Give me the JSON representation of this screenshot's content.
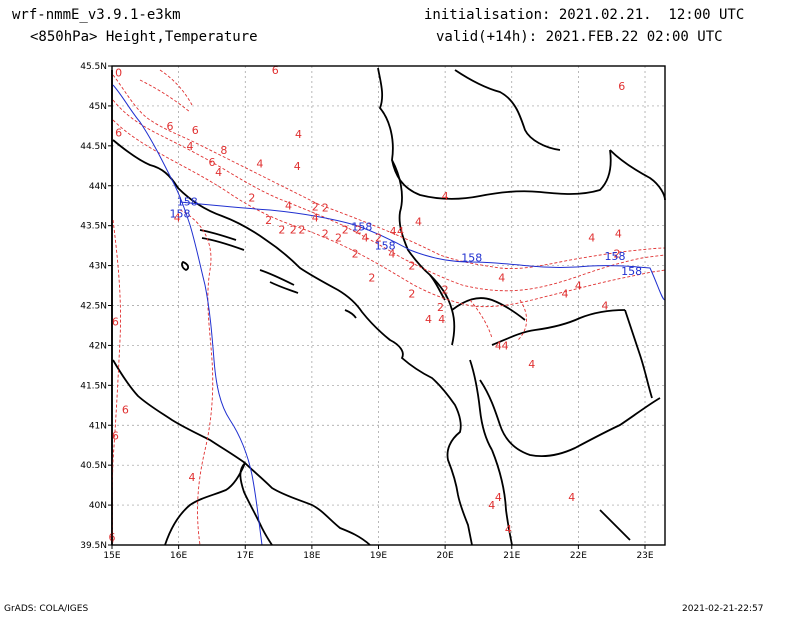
{
  "header": {
    "model": "wrf-nmmE_v3.9.1-e3km",
    "level": "<850hPa> Height,Temperature",
    "init": "initialisation: 2021.02.21.  12:00 UTC",
    "valid": "valid(+14h): 2021.FEB.22 02:00 UTC"
  },
  "footer": {
    "credit": "GrADS: COLA/IGES",
    "timestamp": "2021-02-21-22:57"
  },
  "map": {
    "lon_range": [
      15,
      23.3
    ],
    "lat_range": [
      39.5,
      45.5
    ],
    "lon_ticks": [
      "15E",
      "16E",
      "17E",
      "18E",
      "19E",
      "20E",
      "21E",
      "22E",
      "23E"
    ],
    "lat_ticks": [
      "45.5N",
      "45N",
      "44.5N",
      "44N",
      "43.5N",
      "43N",
      "42.5N",
      "42N",
      "41.5N",
      "41N",
      "40.5N",
      "40N",
      "39.5N"
    ],
    "grid": true,
    "colors": {
      "temperature": "#e03030",
      "height": "#2030d0",
      "coast": "#000000",
      "grid": "#9a9a9a"
    },
    "temperature_labels": [
      {
        "text": "0",
        "lon": 15.1,
        "lat": 45.37
      },
      {
        "text": "6",
        "lon": 17.45,
        "lat": 45.4
      },
      {
        "text": "6",
        "lon": 22.65,
        "lat": 45.2
      },
      {
        "text": "6",
        "lon": 15.1,
        "lat": 44.62
      },
      {
        "text": "6",
        "lon": 15.87,
        "lat": 44.7
      },
      {
        "text": "6",
        "lon": 16.25,
        "lat": 44.65
      },
      {
        "text": "4",
        "lon": 16.17,
        "lat": 44.45
      },
      {
        "text": "4",
        "lon": 17.8,
        "lat": 44.6
      },
      {
        "text": "8",
        "lon": 16.68,
        "lat": 44.4
      },
      {
        "text": "6",
        "lon": 16.5,
        "lat": 44.25
      },
      {
        "text": "4",
        "lon": 17.22,
        "lat": 44.23
      },
      {
        "text": "4",
        "lon": 17.78,
        "lat": 44.2
      },
      {
        "text": "4",
        "lon": 16.6,
        "lat": 44.12
      },
      {
        "text": "2",
        "lon": 17.1,
        "lat": 43.8
      },
      {
        "text": "4",
        "lon": 17.65,
        "lat": 43.7
      },
      {
        "text": "2",
        "lon": 18.05,
        "lat": 43.69
      },
      {
        "text": "2",
        "lon": 18.2,
        "lat": 43.68
      },
      {
        "text": "4",
        "lon": 18.05,
        "lat": 43.55
      },
      {
        "text": "4",
        "lon": 20.0,
        "lat": 43.82
      },
      {
        "text": "2",
        "lon": 17.35,
        "lat": 43.52
      },
      {
        "text": "2",
        "lon": 17.55,
        "lat": 43.4
      },
      {
        "text": "2",
        "lon": 17.72,
        "lat": 43.4
      },
      {
        "text": "2",
        "lon": 17.85,
        "lat": 43.4
      },
      {
        "text": "2",
        "lon": 18.2,
        "lat": 43.35
      },
      {
        "text": "2",
        "lon": 18.4,
        "lat": 43.3
      },
      {
        "text": "2",
        "lon": 18.5,
        "lat": 43.4
      },
      {
        "text": "2",
        "lon": 18.7,
        "lat": 43.4
      },
      {
        "text": "4",
        "lon": 18.8,
        "lat": 43.3
      },
      {
        "text": "2",
        "lon": 19.0,
        "lat": 43.3
      },
      {
        "text": "4",
        "lon": 19.22,
        "lat": 43.38
      },
      {
        "text": "4",
        "lon": 19.33,
        "lat": 43.38
      },
      {
        "text": "4",
        "lon": 19.6,
        "lat": 43.5
      },
      {
        "text": "2",
        "lon": 18.65,
        "lat": 43.1
      },
      {
        "text": "4",
        "lon": 19.2,
        "lat": 43.1
      },
      {
        "text": "2",
        "lon": 19.5,
        "lat": 42.95
      },
      {
        "text": "2",
        "lon": 18.9,
        "lat": 42.8
      },
      {
        "text": "2",
        "lon": 19.5,
        "lat": 42.6
      },
      {
        "text": "2",
        "lon": 20.0,
        "lat": 42.65
      },
      {
        "text": "2",
        "lon": 19.93,
        "lat": 42.43
      },
      {
        "text": "4",
        "lon": 19.75,
        "lat": 42.28
      },
      {
        "text": "4",
        "lon": 19.95,
        "lat": 42.28
      },
      {
        "text": "4",
        "lon": 20.85,
        "lat": 42.8
      },
      {
        "text": "4",
        "lon": 22.2,
        "lat": 43.3
      },
      {
        "text": "4",
        "lon": 22.6,
        "lat": 43.35
      },
      {
        "text": "2",
        "lon": 22.58,
        "lat": 43.1
      },
      {
        "text": "4",
        "lon": 21.8,
        "lat": 42.6
      },
      {
        "text": "4",
        "lon": 22.0,
        "lat": 42.7
      },
      {
        "text": "4",
        "lon": 22.4,
        "lat": 42.45
      },
      {
        "text": "4",
        "lon": 20.8,
        "lat": 41.95
      },
      {
        "text": "4",
        "lon": 20.9,
        "lat": 41.95
      },
      {
        "text": "4",
        "lon": 21.3,
        "lat": 41.72
      },
      {
        "text": "6",
        "lon": 15.05,
        "lat": 42.25
      },
      {
        "text": "6",
        "lon": 15.2,
        "lat": 41.15
      },
      {
        "text": "6",
        "lon": 15.05,
        "lat": 40.82
      },
      {
        "text": "4",
        "lon": 16.2,
        "lat": 40.3
      },
      {
        "text": "4",
        "lon": 20.8,
        "lat": 40.05
      },
      {
        "text": "4",
        "lon": 20.7,
        "lat": 39.95
      },
      {
        "text": "4",
        "lon": 21.9,
        "lat": 40.05
      },
      {
        "text": "4",
        "lon": 20.95,
        "lat": 39.65
      },
      {
        "text": "6",
        "lon": 15.0,
        "lat": 39.55
      },
      {
        "text": "4",
        "lon": 15.98,
        "lat": 43.55
      }
    ],
    "height_labels": [
      {
        "text": "158",
        "lon": 16.13,
        "lat": 43.75
      },
      {
        "text": "158",
        "lon": 16.02,
        "lat": 43.6
      },
      {
        "text": "158",
        "lon": 18.75,
        "lat": 43.44
      },
      {
        "text": "158",
        "lon": 19.1,
        "lat": 43.2
      },
      {
        "text": "158",
        "lon": 20.4,
        "lat": 43.05
      },
      {
        "text": "158",
        "lon": 22.55,
        "lat": 43.07
      },
      {
        "text": "158",
        "lon": 22.8,
        "lat": 42.88
      }
    ]
  }
}
